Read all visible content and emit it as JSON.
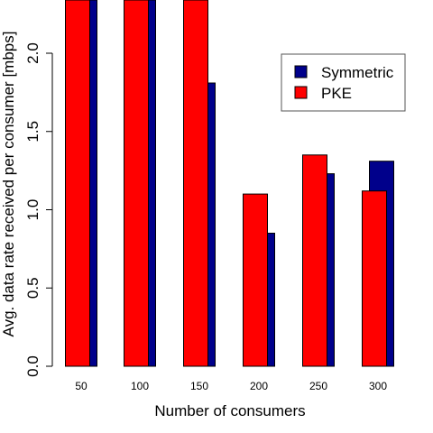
{
  "chart_data": {
    "type": "bar",
    "categories": [
      "50",
      "100",
      "150",
      "200",
      "250",
      "300"
    ],
    "series": [
      {
        "name": "Symmetric",
        "color": "#00008B",
        "values": [
          2.5,
          2.5,
          1.81,
          0.85,
          1.23,
          1.31
        ]
      },
      {
        "name": "PKE",
        "color": "#FF0000",
        "values": [
          2.5,
          2.5,
          2.5,
          1.1,
          1.35,
          1.12
        ]
      }
    ],
    "xlabel": "Number of consumers",
    "ylabel": "Avg. data rate received per consumer [mbps]",
    "ylim": [
      0,
      2.35
    ],
    "yticks": [
      "0.0",
      "0.5",
      "1.0",
      "1.5",
      "2.0"
    ],
    "legend": {
      "position": "top-right",
      "entries": [
        "Symmetric",
        "PKE"
      ]
    },
    "grid": false
  }
}
